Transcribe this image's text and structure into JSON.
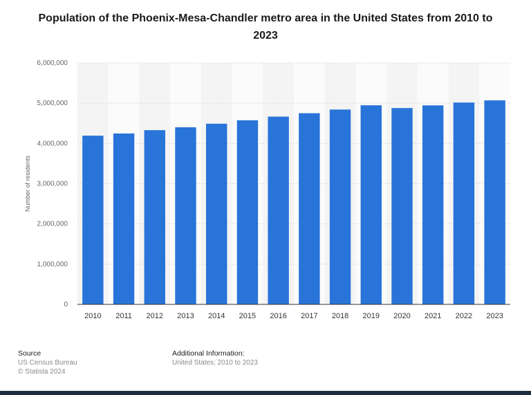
{
  "chart_data": {
    "type": "bar",
    "title": "Population of the Phoenix-Mesa-Chandler metro area in the United States from 2010 to 2023",
    "ylabel": "Number of residents",
    "xlabel": "",
    "ylim": [
      0,
      6000000
    ],
    "yticks": [
      "0",
      "1,000,000",
      "2,000,000",
      "3,000,000",
      "4,000,000",
      "5,000,000",
      "6,000,000"
    ],
    "ytick_values": [
      0,
      1000000,
      2000000,
      3000000,
      4000000,
      5000000,
      6000000
    ],
    "categories": [
      "2010",
      "2011",
      "2012",
      "2013",
      "2014",
      "2015",
      "2016",
      "2017",
      "2018",
      "2019",
      "2020",
      "2021",
      "2022",
      "2023"
    ],
    "values": [
      4193000,
      4247000,
      4330000,
      4401000,
      4490000,
      4575000,
      4666000,
      4751000,
      4842000,
      4948000,
      4879000,
      4946000,
      5016000,
      5070000
    ],
    "bar_color": "#2874d9",
    "grid": true
  },
  "footer": {
    "source_label": "Source",
    "source_lines": [
      "US Census Bureau",
      "© Statista 2024"
    ],
    "info_label": "Additional Information:",
    "info_lines": [
      "United States; 2010 to 2023"
    ]
  }
}
